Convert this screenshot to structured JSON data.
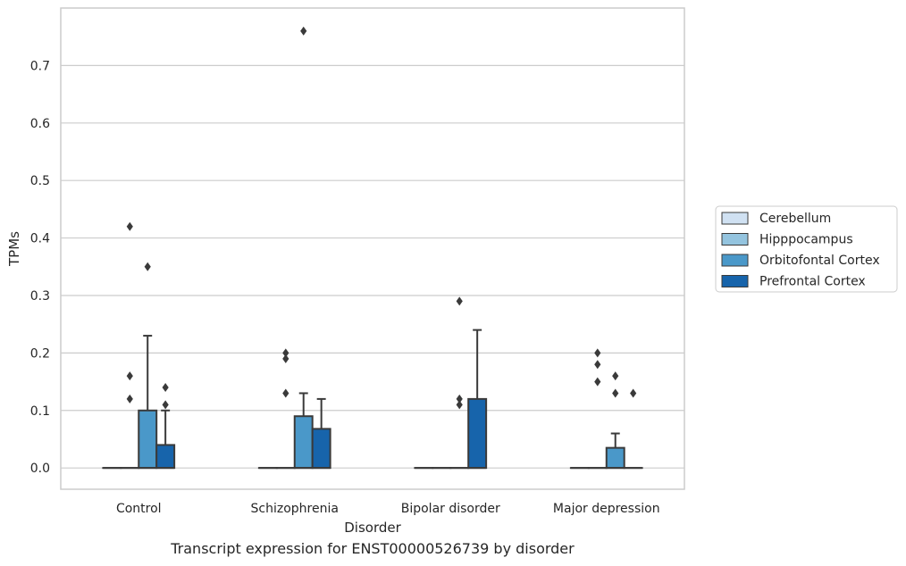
{
  "caption": "Transcript expression for ENST00000526739 by disorder",
  "chart_data": {
    "type": "box",
    "title": "",
    "xlabel": "Disorder",
    "ylabel": "TPMs",
    "ylim": [
      -0.037,
      0.8
    ],
    "yticks": [
      0.0,
      0.1,
      0.2,
      0.3,
      0.4,
      0.5,
      0.6,
      0.7
    ],
    "ytick_labels": [
      "0.0",
      "0.1",
      "0.2",
      "0.3",
      "0.4",
      "0.5",
      "0.6",
      "0.7"
    ],
    "grid": true,
    "legend_position": "right",
    "categories": [
      "Control",
      "Schizophrenia",
      "Bipolar disorder",
      "Major depression"
    ],
    "series": [
      {
        "name": "Cerebellum",
        "color": "#d0e1f2",
        "boxes": [
          {
            "q1": 0,
            "median": 0,
            "q3": 0,
            "whisker_low": 0,
            "whisker_high": 0,
            "outliers": []
          },
          {
            "q1": 0,
            "median": 0,
            "q3": 0,
            "whisker_low": 0,
            "whisker_high": 0,
            "outliers": []
          },
          {
            "q1": 0,
            "median": 0,
            "q3": 0,
            "whisker_low": 0,
            "whisker_high": 0,
            "outliers": []
          },
          {
            "q1": 0,
            "median": 0,
            "q3": 0,
            "whisker_low": 0,
            "whisker_high": 0,
            "outliers": []
          }
        ]
      },
      {
        "name": "Hipppocampus",
        "color": "#94c4df",
        "boxes": [
          {
            "q1": 0,
            "median": 0,
            "q3": 0,
            "whisker_low": 0,
            "whisker_high": 0,
            "outliers": [
              0.42,
              0.16,
              0.12
            ]
          },
          {
            "q1": 0,
            "median": 0,
            "q3": 0,
            "whisker_low": 0,
            "whisker_high": 0,
            "outliers": [
              0.2,
              0.19,
              0.13
            ]
          },
          {
            "q1": 0,
            "median": 0,
            "q3": 0,
            "whisker_low": 0,
            "whisker_high": 0,
            "outliers": []
          },
          {
            "q1": 0,
            "median": 0,
            "q3": 0,
            "whisker_low": 0,
            "whisker_high": 0,
            "outliers": [
              0.2,
              0.18,
              0.15
            ]
          }
        ]
      },
      {
        "name": "Orbitofontal Cortex",
        "color": "#4a98c9",
        "boxes": [
          {
            "q1": 0,
            "median": 0,
            "q3": 0.1,
            "whisker_low": 0,
            "whisker_high": 0.23,
            "outliers": [
              0.35
            ]
          },
          {
            "q1": 0,
            "median": 0,
            "q3": 0.09,
            "whisker_low": 0,
            "whisker_high": 0.13,
            "outliers": [
              0.76
            ]
          },
          {
            "q1": 0,
            "median": 0,
            "q3": 0,
            "whisker_low": 0,
            "whisker_high": 0,
            "outliers": [
              0.29,
              0.12,
              0.11
            ]
          },
          {
            "q1": 0,
            "median": 0,
            "q3": 0.035,
            "whisker_low": 0,
            "whisker_high": 0.06,
            "outliers": [
              0.16,
              0.13
            ]
          }
        ]
      },
      {
        "name": "Prefrontal Cortex",
        "color": "#1764ab",
        "boxes": [
          {
            "q1": 0,
            "median": 0,
            "q3": 0.04,
            "whisker_low": 0,
            "whisker_high": 0.1,
            "outliers": [
              0.14,
              0.11
            ]
          },
          {
            "q1": 0,
            "median": 0,
            "q3": 0.068,
            "whisker_low": 0,
            "whisker_high": 0.12,
            "outliers": []
          },
          {
            "q1": 0,
            "median": 0,
            "q3": 0.12,
            "whisker_low": 0,
            "whisker_high": 0.24,
            "outliers": []
          },
          {
            "q1": 0,
            "median": 0,
            "q3": 0,
            "whisker_low": 0,
            "whisker_high": 0,
            "outliers": [
              0.13
            ]
          }
        ]
      }
    ]
  }
}
